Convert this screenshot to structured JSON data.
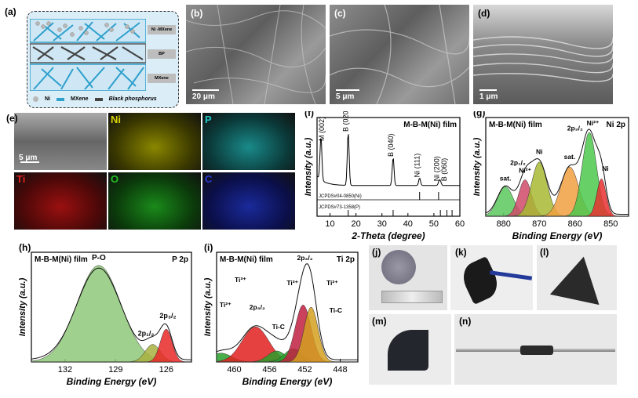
{
  "panels": {
    "a": {
      "label": "(a)",
      "layers": [
        "Ni -MXene",
        "BP",
        "MXene"
      ],
      "legend": [
        "Ni",
        "MXene",
        "Black phosphorus"
      ]
    },
    "b": {
      "label": "(b)",
      "scale": "20 μm"
    },
    "c": {
      "label": "(c)",
      "scale": "5 μm"
    },
    "d": {
      "label": "(d)",
      "scale": "1 μm"
    },
    "e": {
      "label": "(e)",
      "scale": "5 μm",
      "maps": [
        {
          "name": "Ni",
          "color": "#d8d400"
        },
        {
          "name": "P",
          "color": "#1fc8c8"
        },
        {
          "name": "Ti",
          "color": "#e02020"
        },
        {
          "name": "O",
          "color": "#22c022"
        },
        {
          "name": "C",
          "color": "#2a3ad8"
        }
      ]
    },
    "j": {
      "label": "(j)"
    },
    "k": {
      "label": "(k)"
    },
    "l": {
      "label": "(l)"
    },
    "m": {
      "label": "(m)"
    },
    "n": {
      "label": "(n)"
    }
  },
  "chart_data": [
    {
      "id": "f",
      "type": "line",
      "label": "(f)",
      "title": "M-B-M(Ni) film",
      "xlabel": "2-Theta (degree)",
      "ylabel": "Intensity (a.u.)",
      "xlim": [
        5,
        60
      ],
      "xticks": [
        10,
        20,
        30,
        40,
        50,
        60
      ],
      "peaks": [
        {
          "x": 6.5,
          "h": 0.7,
          "label": "M (002)"
        },
        {
          "x": 17.0,
          "h": 0.85,
          "label": "B (020)"
        },
        {
          "x": 34.3,
          "h": 0.45,
          "label": "B (040)"
        },
        {
          "x": 44.5,
          "h": 0.12,
          "label": "Ni (111)"
        },
        {
          "x": 52.0,
          "h": 0.06,
          "label": "Ni (200)"
        },
        {
          "x": 52.5,
          "h": 0.06,
          "label": "B (060)"
        }
      ],
      "references": [
        "JCPDS#04-0850(Ni)",
        "JCPDS#73-1358(P)"
      ]
    },
    {
      "id": "g",
      "type": "area",
      "label": "(g)",
      "title": "M-B-M(Ni) film",
      "region": "Ni 2p",
      "xlabel": "Binding Energy (eV)",
      "ylabel": "Intensity (a.u.)",
      "xlim": [
        885,
        845
      ],
      "xticks": [
        880,
        870,
        860,
        850
      ],
      "components": [
        {
          "center": 879.5,
          "height": 0.3,
          "width": 2.2,
          "color": "#5cc85c",
          "label": "sat."
        },
        {
          "center": 874.0,
          "height": 0.37,
          "width": 1.8,
          "color": "#d04a6a",
          "label": "Ni²⁺"
        },
        {
          "center": 870.0,
          "height": 0.55,
          "width": 2.2,
          "color": "#a8b832",
          "label": "Ni"
        },
        {
          "center": 861.5,
          "height": 0.5,
          "width": 2.5,
          "color": "#f0a040",
          "label": "sat."
        },
        {
          "center": 856.0,
          "height": 0.85,
          "width": 2.0,
          "color": "#4cc84c",
          "label": "Ni²⁺"
        },
        {
          "center": 852.6,
          "height": 0.38,
          "width": 1.3,
          "color": "#e83030",
          "label": "Ni"
        }
      ],
      "annotations": [
        "2p1/2",
        "2p3/2"
      ]
    },
    {
      "id": "h",
      "type": "area",
      "label": "(h)",
      "title": "M-B-M(Ni) film",
      "region": "P 2p",
      "xlabel": "Binding Energy (eV)",
      "ylabel": "Intensity (a.u.)",
      "xlim": [
        134,
        124.5
      ],
      "xticks": [
        132,
        129,
        126
      ],
      "components": [
        {
          "center": 130.0,
          "height": 0.88,
          "width": 1.3,
          "color": "#8fc87a",
          "label": "P-O"
        },
        {
          "center": 126.8,
          "height": 0.16,
          "width": 0.45,
          "color": "#a8b040",
          "label": "2p1/2"
        },
        {
          "center": 126.0,
          "height": 0.3,
          "width": 0.35,
          "color": "#e82828",
          "label": "2p3/2"
        }
      ]
    },
    {
      "id": "i",
      "type": "area",
      "label": "(i)",
      "title": "M-B-M(Ni) film",
      "region": "Ti 2p",
      "xlabel": "Binding Energy (eV)",
      "ylabel": "Intensity (a.u.)",
      "xlim": [
        462,
        446
      ],
      "xticks": [
        460,
        456,
        452,
        448
      ],
      "components": [
        {
          "center": 461.5,
          "height": 0.08,
          "width": 1.2,
          "color": "#2aa02a",
          "label": "Ti²⁺"
        },
        {
          "center": 457.6,
          "height": 0.32,
          "width": 1.5,
          "color": "#e02020",
          "label": "Ti³⁺"
        },
        {
          "center": 455.2,
          "height": 0.1,
          "width": 1.0,
          "color": "#2aa02a",
          "label": "Ti-C"
        },
        {
          "center": 453.3,
          "height": 0.12,
          "width": 1.0,
          "color": "#2aa02a",
          "label": "Ti²⁺"
        },
        {
          "center": 452.2,
          "height": 0.52,
          "width": 0.9,
          "color": "#c02040",
          "label": "Ti³⁺"
        },
        {
          "center": 451.3,
          "height": 0.5,
          "width": 0.8,
          "color": "#d4a020",
          "label": "Ti-C"
        }
      ],
      "annotations": [
        "2p1/2",
        "2p3/2",
        "Ti³⁺",
        "Ti²⁺",
        "Ti-C"
      ]
    }
  ]
}
